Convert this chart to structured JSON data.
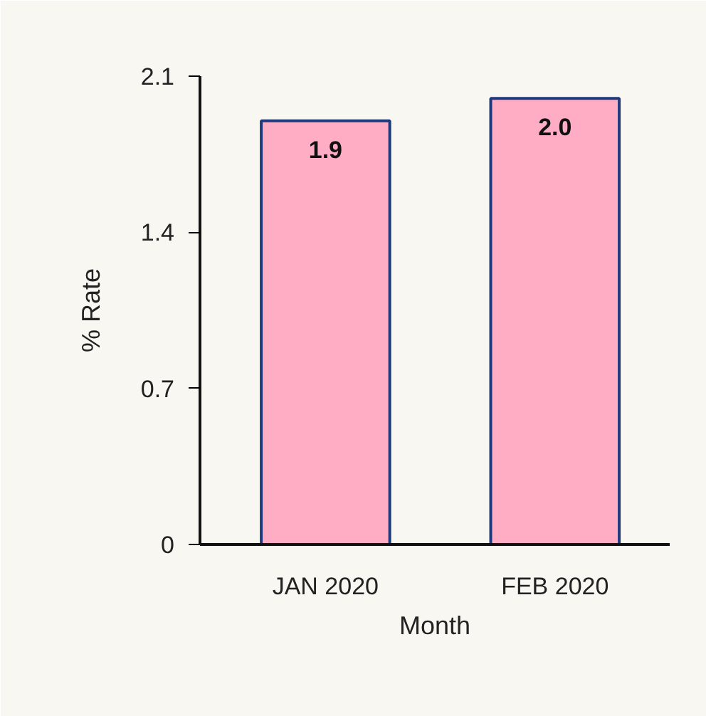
{
  "chart_data": {
    "type": "bar",
    "categories": [
      "JAN 2020",
      "FEB 2020"
    ],
    "values": [
      1.9,
      2.0
    ],
    "value_labels": [
      "1.9",
      "2.0"
    ],
    "color": "#ffadc5",
    "xlabel": "Month",
    "ylabel": "% Rate",
    "ylim": [
      0,
      2.1
    ],
    "yticks": [
      0,
      0.7,
      1.4,
      2.1
    ]
  }
}
